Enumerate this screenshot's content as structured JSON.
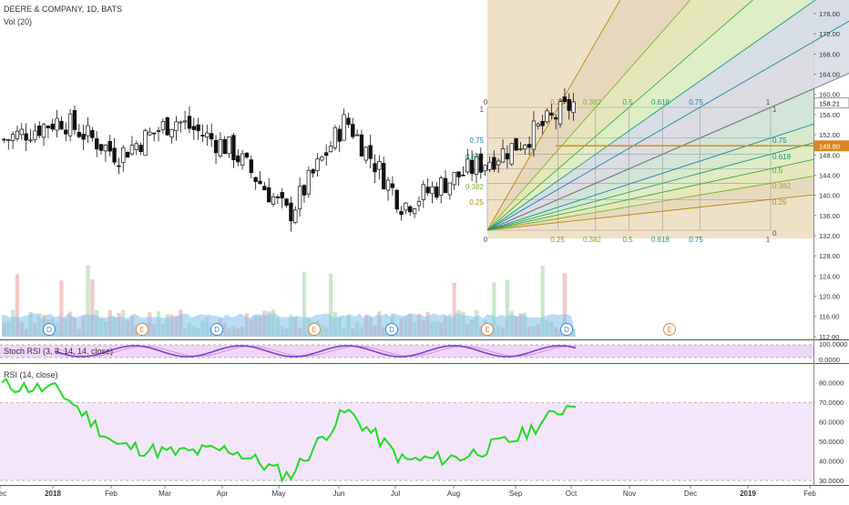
{
  "header": {
    "symbol_line": "DEERE & COMPANY, 1D, BATS",
    "volume_label": "Vol (20)"
  },
  "price_axis": {
    "ticks": [
      "176.00",
      "172.00",
      "168.00",
      "164.00",
      "160.00",
      "156.00",
      "152.00",
      "148.00",
      "144.00",
      "140.00",
      "136.00",
      "132.00",
      "128.00",
      "124.00",
      "120.00",
      "116.00",
      "112.00"
    ],
    "current_price": "158.21",
    "marked_price": "149.80"
  },
  "time_axis": {
    "labels": [
      "Dec",
      "2018",
      "Feb",
      "Mar",
      "Apr",
      "May",
      "Jun",
      "Jul",
      "Aug",
      "Sep",
      "Oct",
      "Nov",
      "Dec",
      "2019",
      "Feb"
    ]
  },
  "events": [
    "D",
    "E",
    "D",
    "E",
    "D",
    "E",
    "D",
    "E"
  ],
  "gann_fan": {
    "levels": [
      "0",
      "0.25",
      "0.382",
      "0.5",
      "0.618",
      "0.75",
      "1"
    ],
    "bg_color": "#efe1c6",
    "colors": [
      "#a0522d",
      "#b8860b",
      "#7fb032",
      "#3caa3c",
      "#1e9e6e",
      "#1a7fa8",
      "#777777"
    ]
  },
  "stoch": {
    "title": "Stoch RSI (3, 3, 14, 14, close)",
    "ticks": [
      "100.0000",
      "0.0000"
    ],
    "line_color": "#7b3fd1"
  },
  "rsi": {
    "title": "RSI (14, close)",
    "ticks": [
      "80.0000",
      "70.0000",
      "60.0000",
      "50.0000",
      "40.0000",
      "30.0000"
    ],
    "line_color": "#22dd22",
    "upper": 70,
    "lower": 30
  },
  "chart_data": [
    {
      "type": "candlestick",
      "title": "DEERE & COMPANY, 1D, BATS",
      "ylim": [
        130,
        178
      ],
      "x": [
        "2017-12",
        "2018-01",
        "2018-02",
        "2018-03",
        "2018-04",
        "2018-05",
        "2018-06",
        "2018-07",
        "2018-08",
        "2018-09",
        "2018-10"
      ],
      "approx_close": [
        151,
        155,
        148,
        155,
        149,
        136,
        155,
        138,
        144,
        150,
        158.21
      ]
    },
    {
      "type": "bar",
      "title": "Vol (20)",
      "x": [
        "2017-12",
        "2018-01",
        "2018-02",
        "2018-03",
        "2018-04",
        "2018-05",
        "2018-06",
        "2018-07",
        "2018-08",
        "2018-09",
        "2018-10"
      ]
    },
    {
      "type": "line",
      "title": "Stoch RSI (3, 3, 14, 14, close)",
      "ylim": [
        0,
        100
      ]
    },
    {
      "type": "line",
      "title": "RSI (14, close)",
      "ylim": [
        25,
        85
      ],
      "x": [
        "2017-12",
        "2018-01",
        "2018-02",
        "2018-03",
        "2018-04",
        "2018-05",
        "2018-06",
        "2018-07",
        "2018-08",
        "2018-09",
        "2018-10"
      ],
      "values": [
        79,
        76,
        48,
        44,
        46,
        32,
        66,
        40,
        42,
        52,
        71
      ]
    }
  ]
}
